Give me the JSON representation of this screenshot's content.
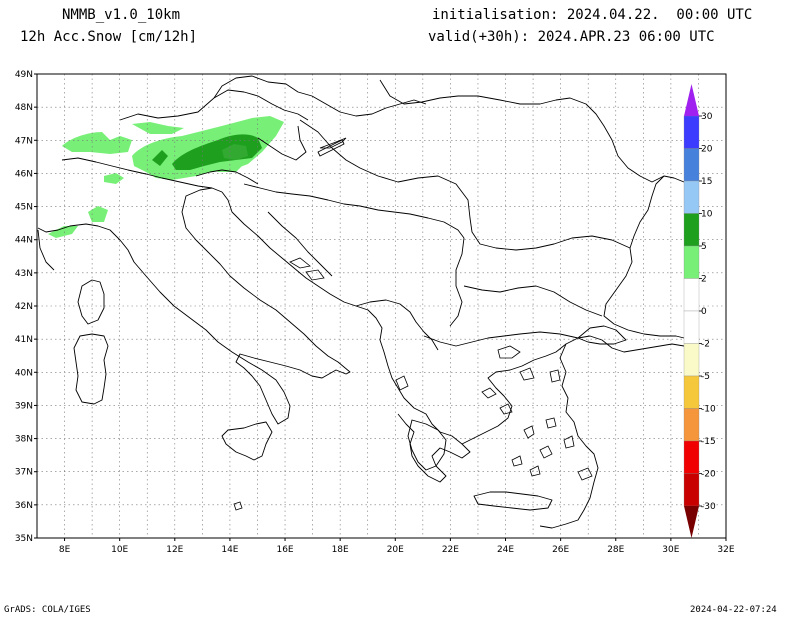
{
  "header": {
    "model": "NMMB_v1.0_10km",
    "field": "12h Acc.Snow [cm/12h]",
    "init": "initialisation: 2024.04.22.  00:00 UTC",
    "valid": "valid(+30h): 2024.APR.23 06:00 UTC"
  },
  "axes": {
    "lon_labels": [
      "8E",
      "10E",
      "12E",
      "14E",
      "16E",
      "18E",
      "20E",
      "22E",
      "24E",
      "26E",
      "28E",
      "30E",
      "32E"
    ],
    "lat_labels": [
      "49N",
      "48N",
      "47N",
      "46N",
      "45N",
      "44N",
      "43N",
      "42N",
      "41N",
      "40N",
      "39N",
      "38N",
      "37N",
      "36N",
      "35N"
    ],
    "lon_range": [
      7,
      32
    ],
    "lat_range": [
      35,
      49
    ],
    "grid": "dotted"
  },
  "legend": {
    "labels": [
      "30",
      "20",
      "15",
      "10",
      "5",
      "2",
      "0",
      "-2",
      "-5",
      "-10",
      "-15",
      "-20",
      "-30"
    ],
    "colors": {
      "above30": "#a020f0",
      "b20_30": "#3c3cff",
      "b15_20": "#4682dc",
      "b10_15": "#96c8f5",
      "b5_10": "#1ea01e",
      "b2_5": "#78f078",
      "b0_2": "#ffffff",
      "bn2_0": "#ffffff",
      "bn5_n2": "#fafac8",
      "bn10_n5": "#f5c83c",
      "bn15_n10": "#f5963c",
      "bn20_n15": "#f00000",
      "bn30_n20": "#c80000",
      "below_n30": "#780000"
    }
  },
  "footer": {
    "left": "GrADS: COLA/IGES",
    "right": "2024-04-22-07:24"
  }
}
